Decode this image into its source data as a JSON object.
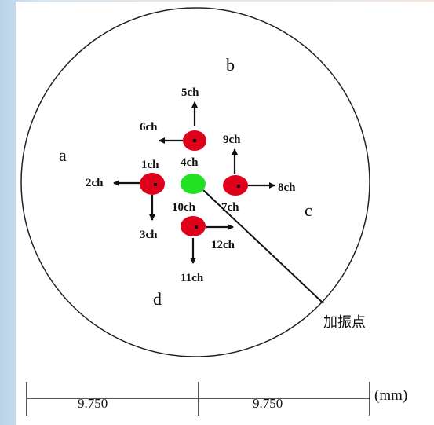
{
  "regions": {
    "a": "a",
    "b": "b",
    "c": "c",
    "d": "d"
  },
  "channels": {
    "ch1": "1ch",
    "ch2": "2ch",
    "ch3": "3ch",
    "ch4": "4ch",
    "ch5": "5ch",
    "ch6": "6ch",
    "ch7": "7ch",
    "ch8": "8ch",
    "ch9": "9ch",
    "ch10": "10ch",
    "ch11": "11ch",
    "ch12": "12ch"
  },
  "excitation_point_label": "加振点",
  "scale": {
    "left": "9.750",
    "right": "9.750",
    "unit": "(mm)"
  },
  "colors": {
    "sensor": "#e0001a",
    "excitation": "#22e022",
    "line": "#111111"
  }
}
